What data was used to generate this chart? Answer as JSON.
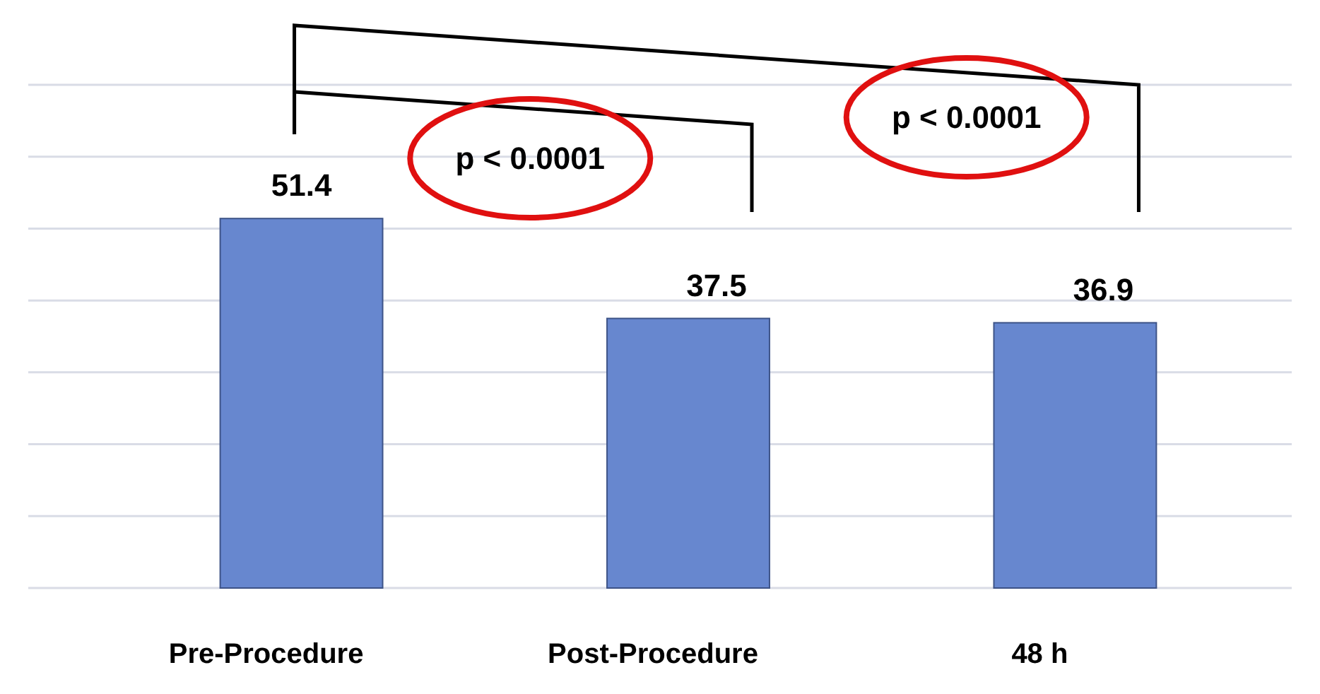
{
  "chart_data": {
    "type": "bar",
    "categories": [
      "Pre-Procedure",
      "Post-Procedure",
      "48 h"
    ],
    "values": [
      51.4,
      37.5,
      36.9
    ],
    "color": "#6787cf",
    "data_labels": true,
    "ylim": [
      0,
      70
    ],
    "yticks": [
      {
        "value": 0,
        "label": null
      },
      {
        "value": 10,
        "label": null
      },
      {
        "value": 20,
        "label": null
      },
      {
        "value": 30,
        "label": null
      },
      {
        "value": 40,
        "label": null
      },
      {
        "value": 50,
        "label": null
      },
      {
        "value": 60,
        "label": null
      },
      {
        "value": 70,
        "label": null
      }
    ],
    "grid": "y",
    "tick_labels": "x",
    "annotations": [
      "p < 0.0001",
      "p < 0.0001"
    ]
  }
}
